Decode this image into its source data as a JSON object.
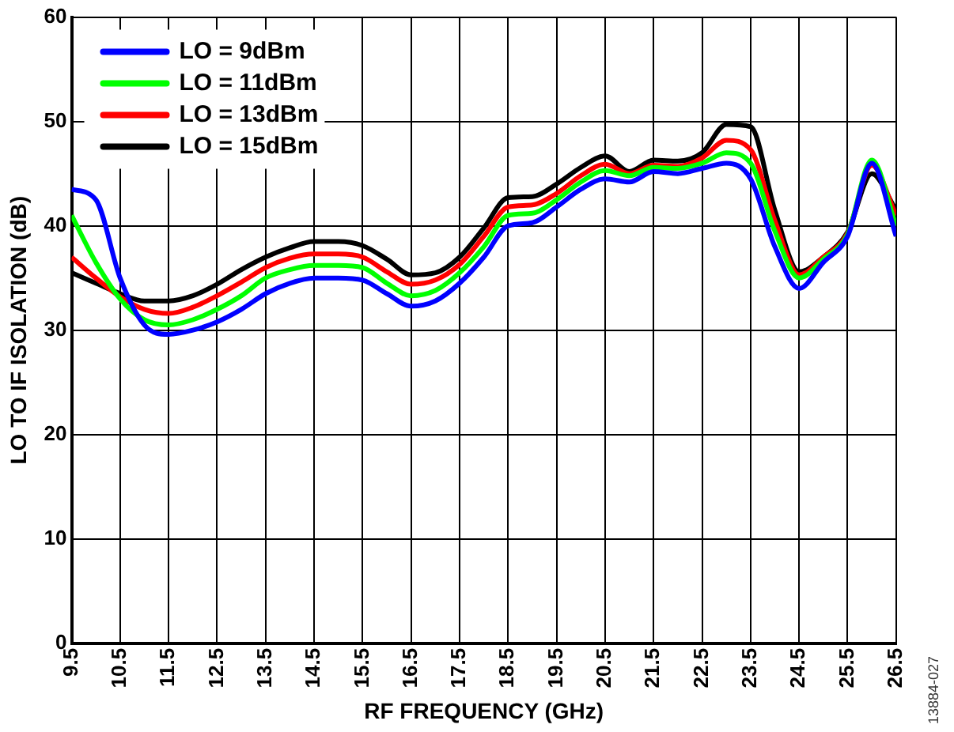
{
  "chart_data": {
    "type": "line",
    "xlabel": "RF FREQUENCY (GHz)",
    "ylabel": "LO TO IF ISOLATION (dB)",
    "annotations": [
      "13884-027"
    ],
    "x": [
      9.5,
      10,
      10.5,
      11,
      11.5,
      12,
      12.5,
      13,
      13.5,
      14,
      14.5,
      15,
      15.5,
      16,
      16.5,
      17,
      17.5,
      18,
      18.5,
      19,
      19.5,
      20,
      20.5,
      21,
      21.5,
      22,
      22.5,
      23,
      23.5,
      24,
      24.5,
      25,
      25.5,
      26,
      26.5
    ],
    "series": [
      {
        "name": "LO = 9dBm",
        "color": "#0000ff",
        "values": [
          43.5,
          42.5,
          35,
          30.5,
          29.6,
          30,
          30.8,
          32,
          33.5,
          34.5,
          35,
          35,
          34.8,
          33.5,
          32.3,
          32.8,
          34.5,
          37,
          40,
          40.3,
          41.8,
          43.5,
          44.5,
          44.2,
          45.2,
          45,
          45.5,
          46,
          44.5,
          38,
          34,
          36.5,
          39,
          46,
          39
        ]
      },
      {
        "name": "LO = 11dBm",
        "color": "#00ff00",
        "values": [
          41,
          36.5,
          33,
          31,
          30.5,
          31,
          32,
          33.3,
          35,
          35.8,
          36.2,
          36.2,
          36,
          34.5,
          33.3,
          33.8,
          35.5,
          38,
          41,
          41.2,
          42.5,
          44.2,
          45.3,
          44.8,
          45.6,
          45.5,
          46,
          47,
          46,
          39.5,
          35,
          36.8,
          39.2,
          46.3,
          40
        ]
      },
      {
        "name": "LO = 13dBm",
        "color": "#ff0000",
        "values": [
          37,
          35,
          33.2,
          32,
          31.6,
          32.2,
          33.3,
          34.6,
          36,
          36.9,
          37.3,
          37.3,
          37,
          35.6,
          34.4,
          34.8,
          36.3,
          39,
          41.8,
          42,
          43.1,
          44.8,
          45.9,
          45,
          45.8,
          45.7,
          46.5,
          48.2,
          47.3,
          40.5,
          35.3,
          37,
          39.3,
          45.8,
          41
        ]
      },
      {
        "name": "LO = 15dBm",
        "color": "#000000",
        "values": [
          35.5,
          34.5,
          33.5,
          32.8,
          32.8,
          33.3,
          34.4,
          35.8,
          37,
          37.9,
          38.5,
          38.5,
          38.1,
          36.8,
          35.3,
          35.5,
          37,
          39.8,
          42.7,
          42.8,
          44,
          45.6,
          46.7,
          45.2,
          46.3,
          46.2,
          47,
          49.7,
          49.5,
          41.5,
          35.6,
          37,
          39.4,
          45,
          41.5
        ]
      }
    ],
    "xlim": [
      9.5,
      26.5
    ],
    "xticks": [
      9.5,
      10.5,
      11.5,
      12.5,
      13.5,
      14.5,
      15.5,
      16.5,
      17.5,
      18.5,
      19.5,
      20.5,
      21.5,
      22.5,
      23.5,
      24.5,
      25.5,
      26.5
    ],
    "ylim": [
      0,
      60
    ],
    "yticks": [
      0,
      10,
      20,
      30,
      40,
      50,
      60
    ],
    "grid": true,
    "legend": "top left",
    "line_style": "solid",
    "marker": "none"
  }
}
